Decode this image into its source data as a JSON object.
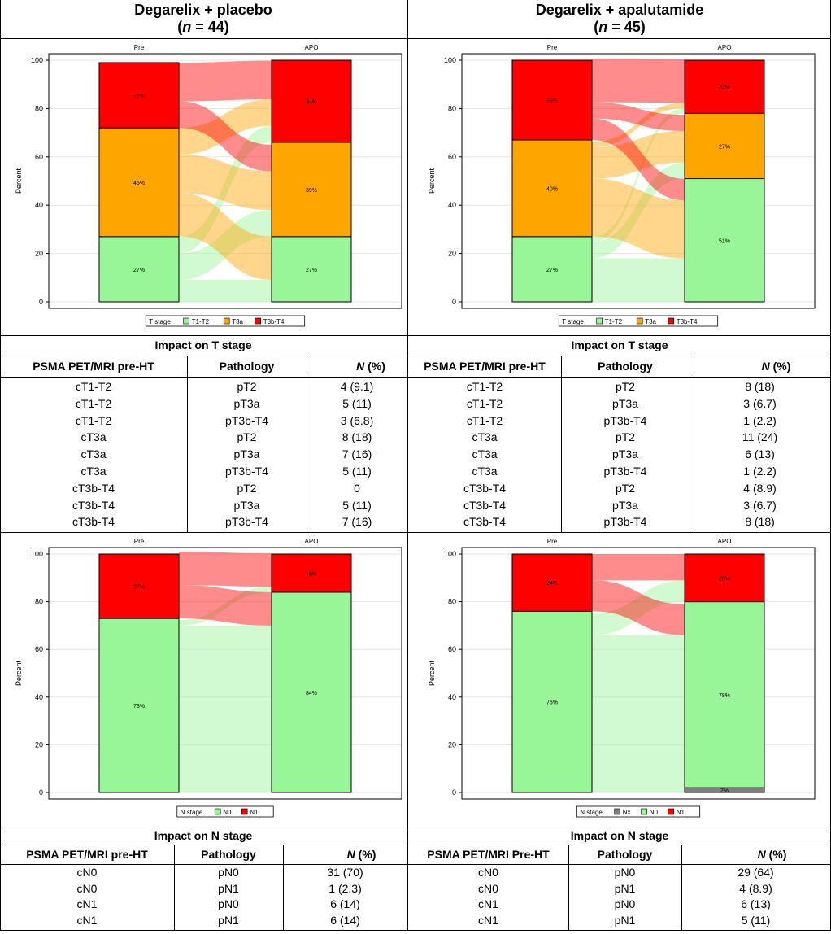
{
  "panels": [
    {
      "title": "Degarelix + placebo",
      "n_label": "n",
      "n_value": "= 44",
      "t_section": "Impact on T stage",
      "t_headers": [
        "PSMA PET/MRI pre-HT",
        "Pathology",
        "N",
        "(%)"
      ],
      "t_rows": [
        [
          "cT1-T2",
          "pT2",
          "4 (9.1)"
        ],
        [
          "cT1-T2",
          "pT3a",
          "5 (11)"
        ],
        [
          "cT1-T2",
          "pT3b-T4",
          "3 (6.8)"
        ],
        [
          "cT3a",
          "pT2",
          "8 (18)"
        ],
        [
          "cT3a",
          "pT3a",
          "7 (16)"
        ],
        [
          "cT3a",
          "pT3b-T4",
          "5 (11)"
        ],
        [
          "cT3b-T4",
          "pT2",
          "0"
        ],
        [
          "cT3b-T4",
          "pT3a",
          "5 (11)"
        ],
        [
          "cT3b-T4",
          "pT3b-T4",
          "7 (16)"
        ]
      ],
      "n_section": "Impact on N stage",
      "n_headers": [
        "PSMA PET/MRI pre-HT",
        "Pathology",
        "N",
        "(%)"
      ],
      "n_rows": [
        [
          "cN0",
          "pN0",
          "31 (70)"
        ],
        [
          "cN0",
          "pN1",
          "1 (2.3)"
        ],
        [
          "cN1",
          "pN0",
          "6 (14)"
        ],
        [
          "cN1",
          "pN1",
          "6 (14)"
        ]
      ]
    },
    {
      "title": "Degarelix + apalutamide",
      "n_label": "n",
      "n_value": "= 45",
      "t_section": "Impact on T stage",
      "t_headers": [
        "PSMA PET/MRI pre-HT",
        "Pathology",
        "N",
        "(%)"
      ],
      "t_rows": [
        [
          "cT1-T2",
          "pT2",
          "8 (18)"
        ],
        [
          "cT1-T2",
          "pT3a",
          "3 (6.7)"
        ],
        [
          "cT1-T2",
          "pT3b-T4",
          "1 (2.2)"
        ],
        [
          "cT3a",
          "pT2",
          "11 (24)"
        ],
        [
          "cT3a",
          "pT3a",
          "6 (13)"
        ],
        [
          "cT3a",
          "pT3b-T4",
          "1 (2.2)"
        ],
        [
          "cT3b-T4",
          "pT2",
          "4 (8.9)"
        ],
        [
          "cT3b-T4",
          "pT3a",
          "3 (6.7)"
        ],
        [
          "cT3b-T4",
          "pT3b-T4",
          "8 (18)"
        ]
      ],
      "n_section": "Impact on N stage",
      "n_headers": [
        "PSMA PET/MRI Pre-HT",
        "Pathology",
        "N",
        "(%)"
      ],
      "n_rows": [
        [
          "cN0",
          "pN0",
          "29 (64)"
        ],
        [
          "cN0",
          "pN1",
          "4 (8.9)"
        ],
        [
          "cN1",
          "pN0",
          "6 (13)"
        ],
        [
          "cN1",
          "pN1",
          "5 (11)"
        ]
      ]
    }
  ],
  "colors": {
    "t1t2": "#98f598",
    "t3a": "#ffa500",
    "t3bt4": "#ff0000",
    "nx": "#808080",
    "flow_alpha": 0.45
  },
  "chart_data": [
    {
      "type": "alluvial",
      "id": "t-placebo",
      "columns": [
        "Pre",
        "APO"
      ],
      "ylabel": "Percent",
      "ylim": [
        0,
        100
      ],
      "yticks": [
        0,
        20,
        40,
        60,
        80,
        100
      ],
      "legend_title": "T stage",
      "categories": [
        "T1-T2",
        "T3a",
        "T3b-T4"
      ],
      "pre": [
        27,
        45,
        27
      ],
      "apo": [
        27,
        39,
        34
      ],
      "pre_labels": [
        "27%",
        "45%",
        "27%"
      ],
      "apo_labels": [
        "27%",
        "39%",
        "34%"
      ],
      "flows": [
        [
          9.1,
          11,
          6.8
        ],
        [
          18,
          16,
          11
        ],
        [
          0,
          11,
          16
        ]
      ]
    },
    {
      "type": "alluvial",
      "id": "t-apalutamide",
      "columns": [
        "Pre",
        "APO"
      ],
      "ylabel": "Percent",
      "ylim": [
        0,
        100
      ],
      "yticks": [
        0,
        20,
        40,
        60,
        80,
        100
      ],
      "legend_title": "T stage",
      "categories": [
        "T1-T2",
        "T3a",
        "T3b-T4"
      ],
      "pre": [
        27,
        40,
        33
      ],
      "apo": [
        51,
        27,
        22
      ],
      "pre_labels": [
        "27%",
        "40%",
        "33%"
      ],
      "apo_labels": [
        "51%",
        "27%",
        "22%"
      ],
      "flows": [
        [
          18,
          6.7,
          2.2
        ],
        [
          24,
          13,
          2.2
        ],
        [
          8.9,
          6.7,
          18
        ]
      ]
    },
    {
      "type": "alluvial",
      "id": "n-placebo",
      "columns": [
        "Pre",
        "APO"
      ],
      "ylabel": "Percent",
      "ylim": [
        0,
        100
      ],
      "yticks": [
        0,
        20,
        40,
        60,
        80,
        100
      ],
      "legend_title": "N stage",
      "categories": [
        "N0",
        "N1"
      ],
      "pre": [
        73,
        27
      ],
      "apo": [
        84,
        16
      ],
      "pre_labels": [
        "73%",
        "27%"
      ],
      "apo_labels": [
        "84%",
        "16%"
      ],
      "flows": [
        [
          70,
          2.3
        ],
        [
          14,
          14
        ]
      ]
    },
    {
      "type": "alluvial",
      "id": "n-apalutamide",
      "columns": [
        "Pre",
        "APO"
      ],
      "ylabel": "Percent",
      "ylim": [
        0,
        100
      ],
      "yticks": [
        0,
        20,
        40,
        60,
        80,
        100
      ],
      "legend_title": "N stage",
      "categories": [
        "Nx",
        "N0",
        "N1"
      ],
      "pre": [
        0,
        76,
        24
      ],
      "apo": [
        2,
        78,
        20
      ],
      "pre_labels": [
        "",
        "76%",
        "24%"
      ],
      "apo_labels": [
        "2%",
        "78%",
        "20%"
      ],
      "flows": [
        [
          0,
          0,
          0
        ],
        [
          2,
          64,
          9
        ],
        [
          0,
          13,
          11
        ]
      ]
    }
  ]
}
